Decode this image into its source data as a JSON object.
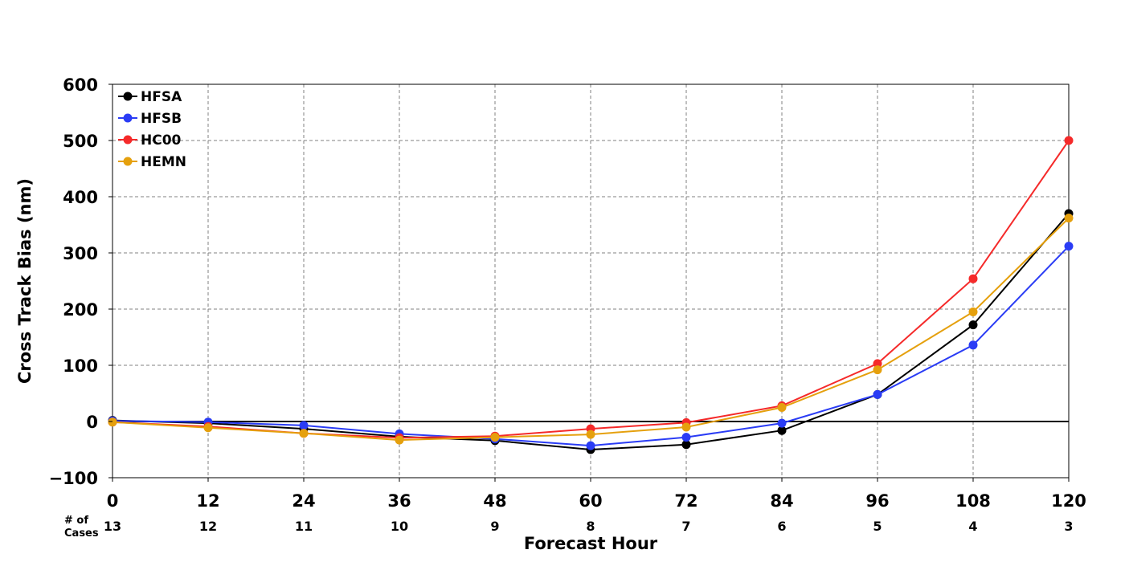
{
  "chart_data": {
    "type": "line",
    "xlabel": "Forecast Hour",
    "ylabel": "Cross Track Bias (nm)",
    "x": [
      0,
      12,
      24,
      36,
      48,
      60,
      72,
      84,
      96,
      108,
      120
    ],
    "x_ticks": [
      "0",
      "12",
      "24",
      "36",
      "48",
      "60",
      "72",
      "84",
      "96",
      "108",
      "120"
    ],
    "xlim": [
      0,
      120
    ],
    "ylim": [
      -100,
      600
    ],
    "y_ticks": [
      -100,
      0,
      100,
      200,
      300,
      400,
      500,
      600
    ],
    "y_tick_labels": [
      "−100",
      "0",
      "100",
      "200",
      "300",
      "400",
      "500",
      "600"
    ],
    "grid": true,
    "zero_line": true,
    "legend_position": "upper-left",
    "cases_label_line1": "# of",
    "cases_label_line2": "Cases",
    "cases": [
      "13",
      "12",
      "11",
      "10",
      "9",
      "8",
      "7",
      "6",
      "5",
      "4",
      "3"
    ],
    "series": [
      {
        "name": "HFSA",
        "color": "#000000",
        "values": [
          2,
          -3,
          -13,
          -27,
          -34,
          -50,
          -41,
          -16,
          48,
          172,
          370
        ]
      },
      {
        "name": "HFSB",
        "color": "#2a3cf5",
        "values": [
          1,
          -1,
          -7,
          -22,
          -31,
          -43,
          -28,
          -3,
          48,
          136,
          312
        ]
      },
      {
        "name": "HC00",
        "color": "#f52a2a",
        "values": [
          -1,
          -9,
          -21,
          -29,
          -26,
          -13,
          -2,
          28,
          103,
          254,
          500
        ]
      },
      {
        "name": "HEMN",
        "color": "#e5a00d",
        "values": [
          -1,
          -11,
          -21,
          -33,
          -28,
          -23,
          -10,
          25,
          92,
          195,
          362
        ]
      }
    ]
  }
}
